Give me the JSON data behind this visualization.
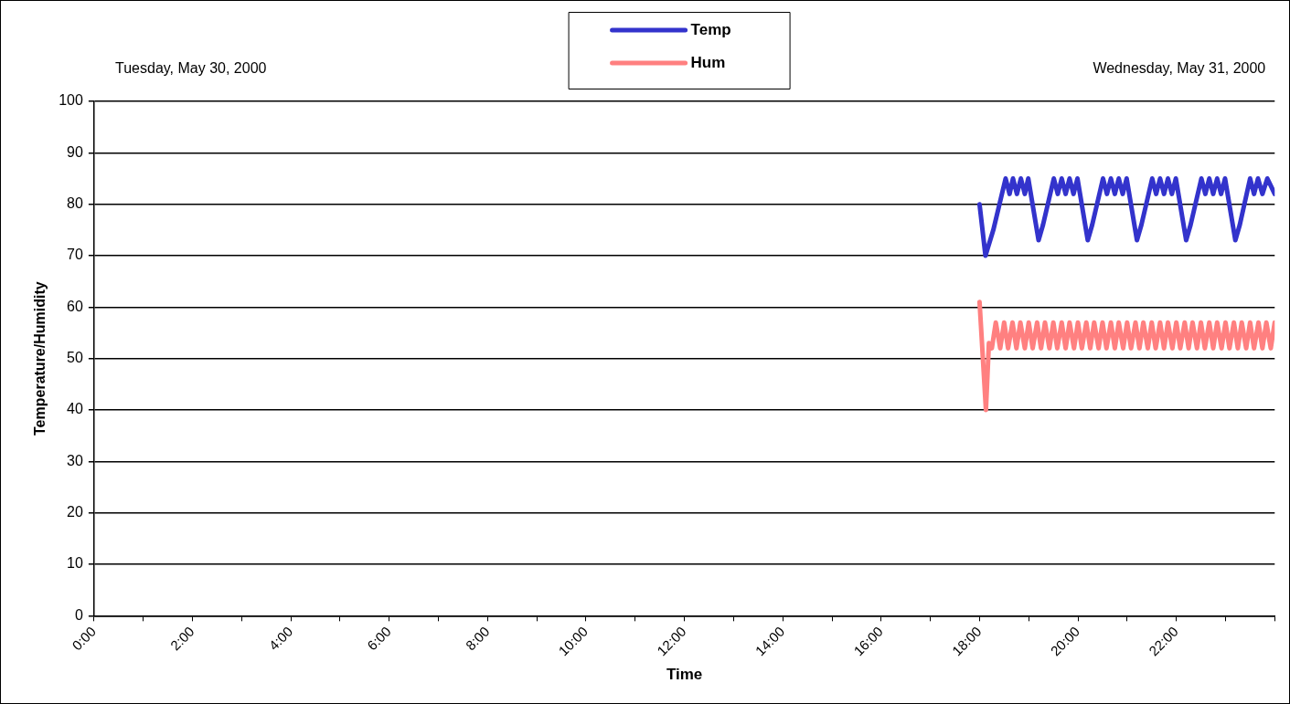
{
  "chart_data": {
    "type": "line",
    "xlabel": "Time",
    "ylabel": "Temperature/Humidity",
    "annotations": [
      "Tuesday, May 30, 2000",
      "Wednesday, May 31, 2000"
    ],
    "xlim": [
      0,
      24
    ],
    "ylim": [
      0,
      100
    ],
    "xticks": [
      {
        "value": 0,
        "label": "0:00"
      },
      {
        "value": 1,
        "label": null
      },
      {
        "value": 2,
        "label": "2:00"
      },
      {
        "value": 3,
        "label": null
      },
      {
        "value": 4,
        "label": "4:00"
      },
      {
        "value": 5,
        "label": null
      },
      {
        "value": 6,
        "label": "6:00"
      },
      {
        "value": 7,
        "label": null
      },
      {
        "value": 8,
        "label": "8:00"
      },
      {
        "value": 9,
        "label": null
      },
      {
        "value": 10,
        "label": "10:00"
      },
      {
        "value": 11,
        "label": null
      },
      {
        "value": 12,
        "label": "12:00"
      },
      {
        "value": 13,
        "label": null
      },
      {
        "value": 14,
        "label": "14:00"
      },
      {
        "value": 15,
        "label": null
      },
      {
        "value": 16,
        "label": "16:00"
      },
      {
        "value": 17,
        "label": null
      },
      {
        "value": 18,
        "label": "18:00"
      },
      {
        "value": 19,
        "label": null
      },
      {
        "value": 20,
        "label": "20:00"
      },
      {
        "value": 21,
        "label": null
      },
      {
        "value": 22,
        "label": "22:00"
      },
      {
        "value": 23,
        "label": null
      },
      {
        "value": 24,
        "label": null
      }
    ],
    "yticks": [
      0,
      10,
      20,
      30,
      40,
      50,
      60,
      70,
      80,
      90,
      100
    ],
    "grid": "y",
    "legend": "top",
    "marker": "none",
    "line_style": "solid",
    "series": [
      {
        "name": "Temp",
        "color": "#3333cc",
        "x": [
          18,
          18.12,
          18.28,
          18.53,
          18.61,
          18.68,
          18.76,
          18.84,
          18.92,
          18.99,
          19.2,
          19.29,
          19.51,
          19.59,
          19.67,
          19.75,
          19.83,
          19.91,
          19.99,
          20.2,
          20.29,
          20.51,
          20.59,
          20.67,
          20.75,
          20.83,
          20.91,
          20.99,
          21.2,
          21.29,
          21.51,
          21.59,
          21.67,
          21.75,
          21.83,
          21.91,
          21.99,
          22.2,
          22.29,
          22.51,
          22.59,
          22.67,
          22.75,
          22.83,
          22.91,
          22.99,
          23.2,
          23.29,
          23.5,
          23.58,
          23.66,
          23.75,
          23.85,
          24
        ],
        "values": [
          80,
          70,
          75,
          85,
          82,
          85,
          82,
          85,
          82,
          85,
          73,
          76,
          85,
          82,
          85,
          82,
          85,
          82,
          85,
          73,
          76,
          85,
          82,
          85,
          82,
          85,
          82,
          85,
          73,
          76,
          85,
          82,
          85,
          82,
          85,
          82,
          85,
          73,
          76,
          85,
          82,
          85,
          82,
          85,
          82,
          85,
          73,
          76,
          85,
          82,
          85,
          82,
          85,
          82
        ]
      },
      {
        "name": "Hum",
        "color": "#ff8080",
        "x": [
          18,
          18.13,
          18.19,
          18.25,
          18.33,
          18.42,
          18.5,
          18.58,
          18.67,
          18.75,
          18.83,
          18.92,
          19,
          19.08,
          19.17,
          19.25,
          19.33,
          19.42,
          19.5,
          19.58,
          19.67,
          19.75,
          19.83,
          19.92,
          20,
          20.08,
          20.17,
          20.25,
          20.33,
          20.42,
          20.5,
          20.58,
          20.67,
          20.75,
          20.83,
          20.92,
          21,
          21.08,
          21.17,
          21.25,
          21.33,
          21.42,
          21.5,
          21.58,
          21.67,
          21.75,
          21.83,
          21.92,
          22,
          22.08,
          22.17,
          22.25,
          22.33,
          22.42,
          22.5,
          22.58,
          22.67,
          22.75,
          22.83,
          22.92,
          23,
          23.08,
          23.17,
          23.25,
          23.33,
          23.42,
          23.5,
          23.58,
          23.67,
          23.75,
          23.83,
          23.92,
          24
        ],
        "values": [
          61,
          40,
          53,
          52,
          57,
          52,
          57,
          52,
          57,
          52,
          57,
          52,
          57,
          52,
          57,
          52,
          57,
          52,
          57,
          52,
          57,
          52,
          57,
          52,
          57,
          52,
          57,
          52,
          57,
          52,
          57,
          52,
          57,
          52,
          57,
          52,
          57,
          52,
          57,
          52,
          57,
          52,
          57,
          52,
          57,
          52,
          57,
          52,
          57,
          52,
          57,
          52,
          57,
          52,
          57,
          52,
          57,
          52,
          57,
          52,
          57,
          52,
          57,
          52,
          57,
          52,
          57,
          52,
          57,
          52,
          57,
          52,
          57
        ]
      }
    ]
  }
}
